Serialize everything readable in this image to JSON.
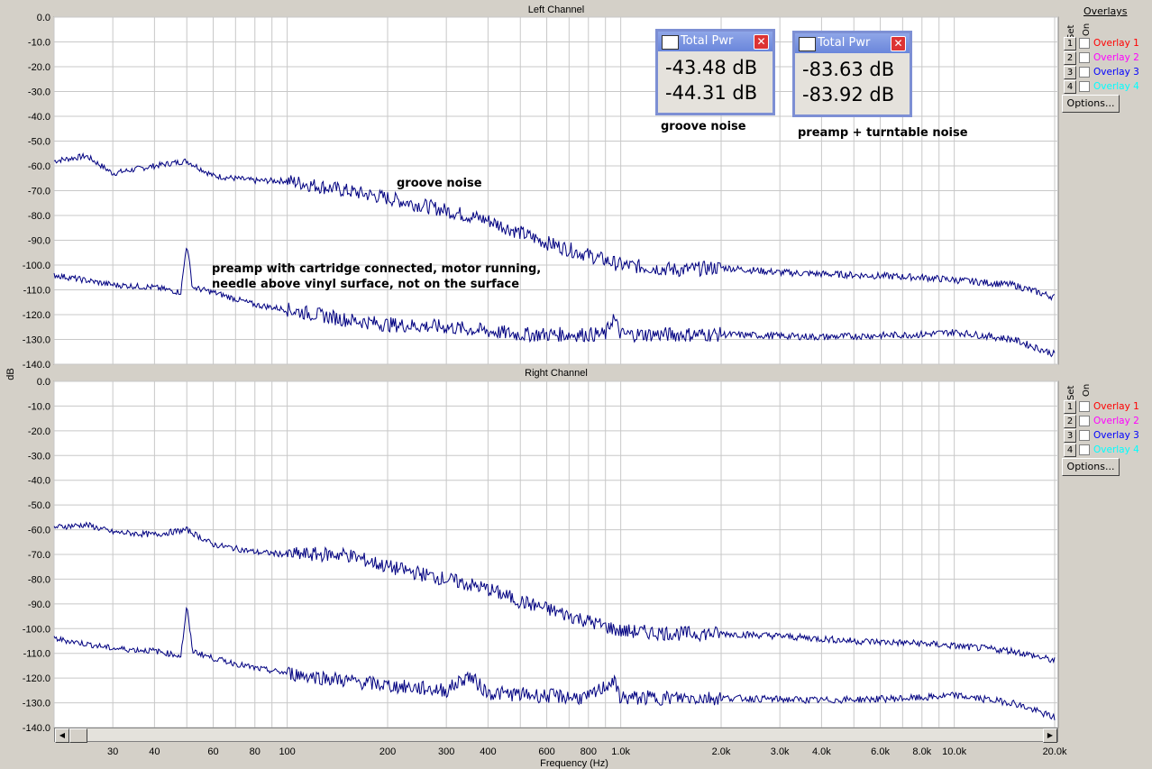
{
  "chart_data": [
    {
      "type": "line",
      "title": "Left Channel",
      "xlabel": "Frequency (Hz)",
      "ylabel": "dB",
      "x_scale": "log",
      "xlim": [
        20,
        20500
      ],
      "ylim": [
        -140,
        0
      ],
      "y_ticks": [
        "0.0",
        "-10.0",
        "-20.0",
        "-30.0",
        "-40.0",
        "-50.0",
        "-60.0",
        "-70.0",
        "-80.0",
        "-90.0",
        "-100.0",
        "-110.0",
        "-120.0",
        "-130.0",
        "-140.0"
      ],
      "grid": true,
      "series": [
        {
          "color": "#000080",
          "points": [
            [
              20,
              -58
            ],
            [
              25,
              -56
            ],
            [
              30,
              -63
            ],
            [
              40,
              -60
            ],
            [
              50,
              -58
            ],
            [
              60,
              -64
            ],
            [
              80,
              -66
            ],
            [
              100,
              -66
            ],
            [
              150,
              -70
            ],
            [
              200,
              -73
            ],
            [
              300,
              -78
            ],
            [
              400,
              -82
            ],
            [
              500,
              -87
            ],
            [
              600,
              -91
            ],
            [
              800,
              -96
            ],
            [
              1000,
              -100
            ],
            [
              1500,
              -102
            ],
            [
              2000,
              -101
            ],
            [
              3000,
              -103
            ],
            [
              5000,
              -104
            ],
            [
              8000,
              -105
            ],
            [
              10000,
              -106
            ],
            [
              15000,
              -108
            ],
            [
              20000,
              -113
            ]
          ]
        },
        {
          "color": "#000080",
          "points": [
            [
              20,
              -104
            ],
            [
              30,
              -108
            ],
            [
              40,
              -109
            ],
            [
              48,
              -111
            ],
            [
              50,
              -91
            ],
            [
              52,
              -109
            ],
            [
              60,
              -111
            ],
            [
              80,
              -116
            ],
            [
              100,
              -118
            ],
            [
              150,
              -122
            ],
            [
              200,
              -124
            ],
            [
              300,
              -125
            ],
            [
              500,
              -128
            ],
            [
              800,
              -128
            ],
            [
              900,
              -128
            ],
            [
              950,
              -121
            ],
            [
              1000,
              -128
            ],
            [
              2000,
              -128
            ],
            [
              4000,
              -129
            ],
            [
              8000,
              -128
            ],
            [
              10000,
              -127
            ],
            [
              15000,
              -130
            ],
            [
              20000,
              -136
            ]
          ]
        }
      ]
    },
    {
      "type": "line",
      "title": "Right Channel",
      "xlabel": "Frequency (Hz)",
      "ylabel": "dB",
      "x_scale": "log",
      "xlim": [
        20,
        20500
      ],
      "ylim": [
        -140,
        0
      ],
      "x_ticks": [
        "30",
        "40",
        "60",
        "80",
        "100",
        "200",
        "300",
        "400",
        "600",
        "800",
        "1.0k",
        "2.0k",
        "3.0k",
        "4.0k",
        "6.0k",
        "8.0k",
        "10.0k",
        "20.0k"
      ],
      "y_ticks": [
        "0.0",
        "-10.0",
        "-20.0",
        "-30.0",
        "-40.0",
        "-50.0",
        "-60.0",
        "-70.0",
        "-80.0",
        "-90.0",
        "-100.0",
        "-110.0",
        "-120.0",
        "-130.0",
        "-140.0"
      ],
      "grid": true,
      "series": [
        {
          "color": "#000080",
          "points": [
            [
              20,
              -59
            ],
            [
              25,
              -58
            ],
            [
              30,
              -61
            ],
            [
              40,
              -62
            ],
            [
              50,
              -60
            ],
            [
              60,
              -66
            ],
            [
              80,
              -69
            ],
            [
              100,
              -70
            ],
            [
              150,
              -70
            ],
            [
              200,
              -75
            ],
            [
              300,
              -80
            ],
            [
              400,
              -84
            ],
            [
              500,
              -89
            ],
            [
              600,
              -92
            ],
            [
              800,
              -97
            ],
            [
              1000,
              -101
            ],
            [
              1500,
              -102
            ],
            [
              2000,
              -102
            ],
            [
              3000,
              -103
            ],
            [
              5000,
              -105
            ],
            [
              8000,
              -106
            ],
            [
              10000,
              -107
            ],
            [
              15000,
              -109
            ],
            [
              20000,
              -113
            ]
          ]
        },
        {
          "color": "#000080",
          "points": [
            [
              20,
              -104
            ],
            [
              30,
              -108
            ],
            [
              40,
              -109
            ],
            [
              48,
              -111
            ],
            [
              50,
              -91
            ],
            [
              52,
              -109
            ],
            [
              60,
              -112
            ],
            [
              80,
              -116
            ],
            [
              100,
              -118
            ],
            [
              150,
              -121
            ],
            [
              200,
              -123
            ],
            [
              300,
              -125
            ],
            [
              350,
              -119
            ],
            [
              400,
              -126
            ],
            [
              800,
              -128
            ],
            [
              950,
              -121
            ],
            [
              1000,
              -128
            ],
            [
              2000,
              -128
            ],
            [
              4000,
              -129
            ],
            [
              8000,
              -128
            ],
            [
              10000,
              -127
            ],
            [
              15000,
              -130
            ],
            [
              20000,
              -136
            ]
          ]
        }
      ]
    }
  ],
  "overlays": {
    "title": "Overlays",
    "set_label": "Set",
    "on_label": "On",
    "items": [
      {
        "num": "1",
        "label": "Overlay 1",
        "color": "#ff0000"
      },
      {
        "num": "2",
        "label": "Overlay 2",
        "color": "#ff00ff"
      },
      {
        "num": "3",
        "label": "Overlay 3",
        "color": "#0000ff"
      },
      {
        "num": "4",
        "label": "Overlay 4",
        "color": "#00ffff"
      }
    ],
    "options_label": "Options..."
  },
  "meters": [
    {
      "title": "Total Pwr",
      "value1": "-43.48 dB",
      "value2": "-44.31 dB",
      "caption": "groove noise"
    },
    {
      "title": "Total Pwr",
      "value1": "-83.63 dB",
      "value2": "-83.92 dB",
      "caption": "preamp + turntable noise"
    }
  ],
  "annotations": {
    "groove": "groove noise",
    "preamp_line1": "preamp with cartridge connected, motor running,",
    "preamp_line2": "needle above vinyl surface, not on the surface"
  },
  "close_glyph": "✕",
  "scroll": {
    "left_arrow": "◀",
    "right_arrow": "▶"
  }
}
